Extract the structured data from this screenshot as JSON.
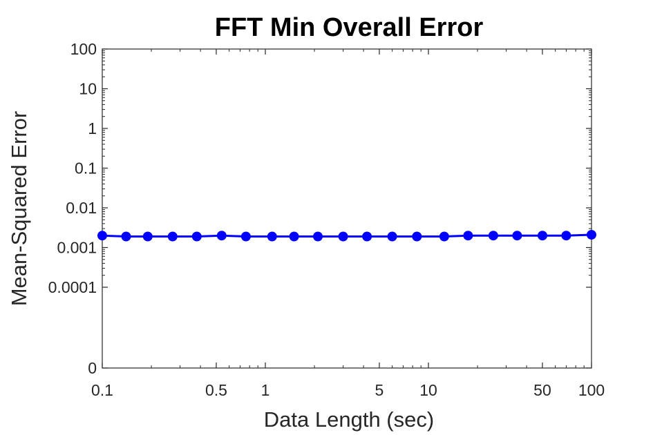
{
  "chart_data": {
    "type": "line",
    "title": "FFT Min Overall Error",
    "xlabel": "Data Length (sec)",
    "ylabel": "Mean-Squared Error",
    "x_scale": "log",
    "y_scale": "log",
    "xlim": [
      0.1,
      100
    ],
    "ylim": [
      0,
      100
    ],
    "grid": false,
    "x_ticks": [
      {
        "value": 0.1,
        "label": "0.1"
      },
      {
        "value": 0.5,
        "label": "0.5"
      },
      {
        "value": 1,
        "label": "1"
      },
      {
        "value": 5,
        "label": "5"
      },
      {
        "value": 10,
        "label": "10"
      },
      {
        "value": 50,
        "label": "50"
      },
      {
        "value": 100,
        "label": "100"
      }
    ],
    "y_ticks": [
      {
        "value": 0,
        "label": "0"
      },
      {
        "value": 0.0001,
        "label": "0.0001"
      },
      {
        "value": 0.001,
        "label": "0.001"
      },
      {
        "value": 0.01,
        "label": "0.01"
      },
      {
        "value": 0.1,
        "label": "0.1"
      },
      {
        "value": 1,
        "label": "1"
      },
      {
        "value": 10,
        "label": "10"
      },
      {
        "value": 100,
        "label": "100"
      }
    ],
    "series": [
      {
        "color": "#0000ff",
        "marker": "circle",
        "x": [
          0.1,
          0.14,
          0.19,
          0.27,
          0.38,
          0.54,
          0.76,
          1.1,
          1.5,
          2.1,
          3.0,
          4.2,
          6.0,
          8.5,
          12.5,
          17.5,
          25,
          35,
          50,
          70,
          100
        ],
        "y": [
          0.002,
          0.0019,
          0.0019,
          0.0019,
          0.0019,
          0.002,
          0.0019,
          0.0019,
          0.0019,
          0.0019,
          0.0019,
          0.0019,
          0.0019,
          0.0019,
          0.0019,
          0.002,
          0.002,
          0.002,
          0.002,
          0.002,
          0.0021
        ]
      }
    ]
  }
}
